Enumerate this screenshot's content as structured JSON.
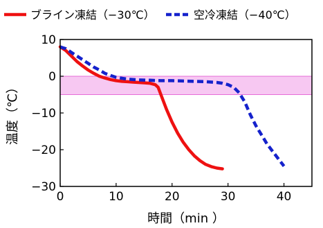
{
  "chart_data": {
    "type": "line",
    "xlabel": "時間（min ）",
    "ylabel": "温度（℃）",
    "xlim": [
      0,
      45
    ],
    "ylim": [
      -30,
      10
    ],
    "x_ticks": [
      0,
      10,
      20,
      30,
      40
    ],
    "y_ticks": [
      10,
      0,
      -10,
      -20,
      -30
    ],
    "legend_placement": "top",
    "grid": false,
    "band": {
      "y_from": -5,
      "y_to": 0,
      "color": "#f7c8f2",
      "edge_color": "#e24fd0"
    },
    "series": [
      {
        "name": "ブライン凍結（−30℃）",
        "color": "#ee1111",
        "style": "solid",
        "x": [
          0,
          1,
          2,
          3,
          4,
          5,
          6,
          7,
          8,
          9,
          10,
          11,
          12,
          13,
          14,
          15,
          16,
          17,
          17.5,
          18,
          19,
          20,
          21,
          22,
          23,
          24,
          25,
          26,
          27,
          28,
          29
        ],
        "y": [
          8,
          7,
          5.5,
          4,
          2.8,
          1.7,
          0.8,
          0,
          -0.5,
          -0.9,
          -1.2,
          -1.4,
          -1.5,
          -1.6,
          -1.7,
          -1.8,
          -1.9,
          -2.3,
          -3,
          -5,
          -9,
          -12.5,
          -15.5,
          -18,
          -20,
          -21.7,
          -23,
          -24,
          -24.6,
          -25,
          -25.2
        ]
      },
      {
        "name": "空冷凍結（−40℃）",
        "color": "#1522cc",
        "style": "dashed",
        "x": [
          0,
          1,
          2,
          3,
          4,
          5,
          6,
          7,
          8,
          9,
          10,
          12,
          14,
          16,
          18,
          20,
          22,
          24,
          26,
          28,
          29,
          30,
          31,
          32,
          33,
          34,
          35,
          36,
          37,
          38,
          39,
          40
        ],
        "y": [
          8,
          7.5,
          6.5,
          5.5,
          4.5,
          3.5,
          2.5,
          1.7,
          0.8,
          0.2,
          -0.3,
          -0.8,
          -1,
          -1.1,
          -1.2,
          -1.2,
          -1.3,
          -1.4,
          -1.5,
          -1.7,
          -1.9,
          -2.3,
          -3,
          -4.5,
          -7,
          -10.5,
          -13.5,
          -16,
          -18.5,
          -20.5,
          -22.5,
          -24.5
        ]
      }
    ]
  }
}
